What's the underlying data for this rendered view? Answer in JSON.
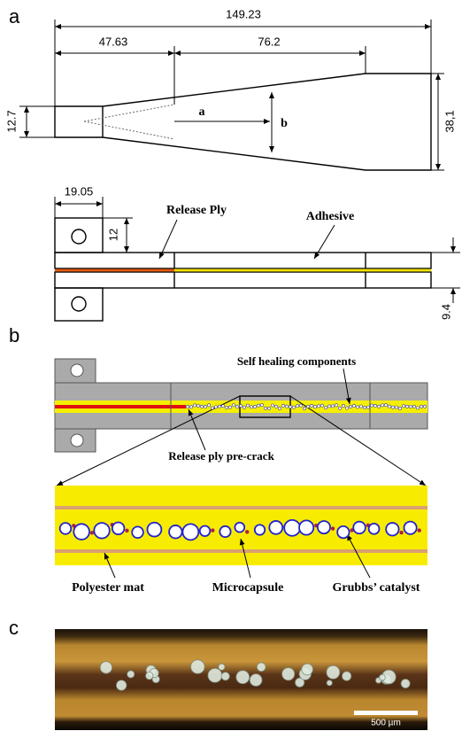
{
  "panel_a": {
    "label": "a",
    "top_view": {
      "overall_length": "149.23",
      "tab_length": "47.63",
      "taper_length": "76.2",
      "tab_width": "12.7",
      "a": "a",
      "b": "b",
      "end_width": "38,1"
    },
    "side_view": {
      "tab_length": "19.05",
      "tab_height": "12",
      "release_ply": "Release Ply",
      "adhesive": "Adhesive",
      "thickness": "9.4"
    }
  },
  "panel_b": {
    "label": "b",
    "self_healing": "Self healing components",
    "precrack": "Release ply pre-crack",
    "polyester_mat": "Polyester mat",
    "microcapsule": "Microcapsule",
    "catalyst": "Grubbs’ catalyst"
  },
  "panel_c": {
    "label": "c",
    "scale_bar": "500 µm"
  }
}
